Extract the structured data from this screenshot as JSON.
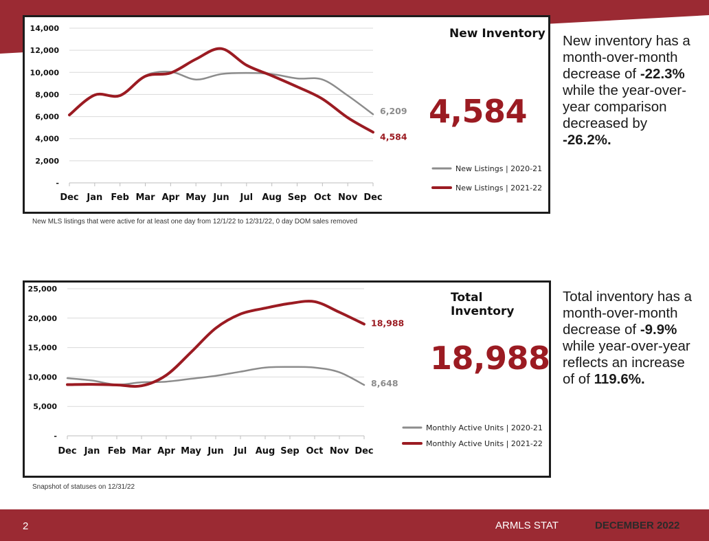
{
  "colors": {
    "accent": "#9b1b22",
    "band": "#9b2a33",
    "gray": "#8c8c8c"
  },
  "chart_data": [
    {
      "type": "line",
      "title": "New Inventory",
      "headline": "4,584",
      "categories": [
        "Dec",
        "Jan",
        "Feb",
        "Mar",
        "Apr",
        "May",
        "Jun",
        "Jul",
        "Aug",
        "Sep",
        "Oct",
        "Nov",
        "Dec"
      ],
      "ylim": [
        0,
        14000
      ],
      "yticks": [
        0,
        2000,
        4000,
        6000,
        8000,
        10000,
        12000,
        14000
      ],
      "ytick_labels": [
        "-",
        "2,000",
        "4,000",
        "6,000",
        "8,000",
        "10,000",
        "12,000",
        "14,000"
      ],
      "series": [
        {
          "name": "New Listings | 2020-21",
          "color": "#8c8c8c",
          "values": [
            6200,
            7950,
            7900,
            9700,
            10050,
            9350,
            9850,
            9950,
            9850,
            9450,
            9350,
            7900,
            6209
          ],
          "end_label": "6,209"
        },
        {
          "name": "New Listings | 2021-22",
          "color": "#9b1b22",
          "values": [
            6150,
            7950,
            7900,
            9650,
            9950,
            11200,
            12150,
            10650,
            9700,
            8700,
            7600,
            5900,
            4584
          ],
          "end_label": "4,584"
        }
      ],
      "note": "New MLS listings that were active for at least one day from 12/1/22 to 12/31/22, 0 day DOM sales removed",
      "summary": {
        "intro": "New inventory has a month-over-month decrease of ",
        "mom": "-22.3%",
        "mid": " while the year-over-year comparison decreased by ",
        "yoy": "-26.2%",
        "end": "."
      }
    },
    {
      "type": "line",
      "title": "Total Inventory",
      "headline": "18,988",
      "categories": [
        "Dec",
        "Jan",
        "Feb",
        "Mar",
        "Apr",
        "May",
        "Jun",
        "Jul",
        "Aug",
        "Sep",
        "Oct",
        "Nov",
        "Dec"
      ],
      "ylim": [
        0,
        25000
      ],
      "yticks": [
        0,
        5000,
        10000,
        15000,
        20000,
        25000
      ],
      "ytick_labels": [
        "-",
        "5,000",
        "10,000",
        "15,000",
        "20,000",
        "25,000"
      ],
      "series": [
        {
          "name": "Monthly Active Units | 2020-21",
          "color": "#8c8c8c",
          "values": [
            9800,
            9400,
            8700,
            9100,
            9200,
            9700,
            10200,
            10900,
            11600,
            11700,
            11600,
            10800,
            8648
          ],
          "end_label": "8,648"
        },
        {
          "name": "Monthly Active Units | 2021-22",
          "color": "#9b1b22",
          "values": [
            8700,
            8750,
            8650,
            8500,
            10300,
            14200,
            18300,
            20700,
            21700,
            22500,
            22800,
            21000,
            18988
          ],
          "end_label": "18,988"
        }
      ],
      "note": "Snapshot of statuses on 12/31/22",
      "summary": {
        "intro": "Total inventory has a month-over-month decrease of ",
        "mom": "-9.9%",
        "mid": " while year-over-year reflects an increase of of ",
        "yoy": "119.6%",
        "end": "."
      }
    }
  ],
  "footer": {
    "page": "2",
    "left": "ARMLS STAT",
    "right": "DECEMBER 2022"
  }
}
